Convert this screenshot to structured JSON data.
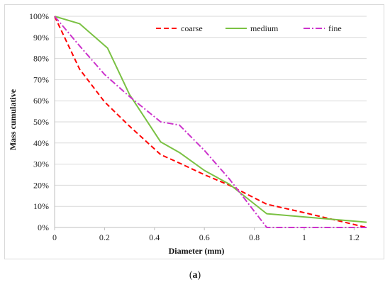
{
  "chart_data": {
    "type": "line",
    "title": "",
    "xlabel": "Diameter (mm)",
    "ylabel": "Mass cumulative",
    "xlim": [
      0,
      1.25
    ],
    "ylim": [
      0,
      100
    ],
    "xticks": [
      0,
      0.2,
      0.4,
      0.6,
      0.8,
      1,
      1.2
    ],
    "xtick_labels": [
      "0",
      "0.2",
      "0.4",
      "0.6",
      "0.8",
      "1",
      "1.2"
    ],
    "yticks": [
      0,
      10,
      20,
      30,
      40,
      50,
      60,
      70,
      80,
      90,
      100
    ],
    "ytick_labels": [
      "0%",
      "10%",
      "20%",
      "30%",
      "40%",
      "50%",
      "60%",
      "70%",
      "80%",
      "90%",
      "100%"
    ],
    "grid": "horizontal",
    "legend": "top-right",
    "series": [
      {
        "name": "coarse",
        "color": "#ff0000",
        "style": "dashed",
        "x": [
          0,
          0.1,
          0.2,
          0.3,
          0.425,
          0.5,
          0.6,
          0.7,
          0.85,
          1.0,
          1.25
        ],
        "y": [
          100,
          75,
          59.5,
          48,
          34.5,
          30.5,
          25,
          20,
          11,
          7,
          0
        ]
      },
      {
        "name": "medium",
        "color": "#7ac143",
        "style": "solid",
        "x": [
          0,
          0.1,
          0.212,
          0.3,
          0.425,
          0.5,
          0.6,
          0.7,
          0.85,
          1.0,
          1.25
        ],
        "y": [
          100,
          96.5,
          85,
          63,
          40.5,
          35.5,
          27,
          20.5,
          6.5,
          5,
          2.5
        ]
      },
      {
        "name": "fine",
        "color": "#cc33cc",
        "style": "dashdot",
        "x": [
          0,
          0.1,
          0.2,
          0.3,
          0.425,
          0.5,
          0.6,
          0.7,
          0.85,
          1.0,
          1.25
        ],
        "y": [
          100,
          86,
          72.5,
          62,
          50,
          48.5,
          36.5,
          23,
          0,
          0,
          0
        ]
      }
    ]
  },
  "caption": {
    "open": "(",
    "label": "a",
    "close": ")"
  }
}
